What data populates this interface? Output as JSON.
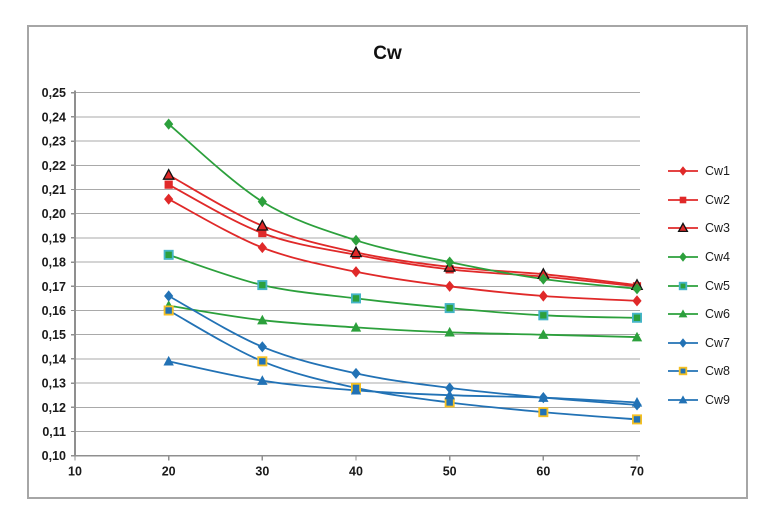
{
  "chart_data": {
    "type": "line",
    "title": "Cw",
    "xlabel": "",
    "ylabel": "",
    "xlim": [
      10,
      70
    ],
    "ylim": [
      0.1,
      0.25
    ],
    "grid": true,
    "legend_position": "right",
    "x_ticks": [
      10,
      20,
      30,
      40,
      50,
      60,
      70
    ],
    "x_tick_labels": [
      "10",
      "20",
      "30",
      "40",
      "50",
      "60",
      "70"
    ],
    "y_ticks": [
      0.1,
      0.11,
      0.12,
      0.13,
      0.14,
      0.15,
      0.16,
      0.17,
      0.18,
      0.19,
      0.2,
      0.21,
      0.22,
      0.23,
      0.24,
      0.25
    ],
    "y_tick_labels": [
      "0,10",
      "0,11",
      "0,12",
      "0,13",
      "0,14",
      "0,15",
      "0,16",
      "0,17",
      "0,18",
      "0,19",
      "0,20",
      "0,21",
      "0,22",
      "0,23",
      "0,24",
      "0,25"
    ],
    "x": [
      20,
      30,
      40,
      50,
      60,
      70
    ],
    "series": [
      {
        "name": "Cw1",
        "marker": "diamond",
        "color": "#e02929",
        "outline": "#e02929",
        "values": [
          0.206,
          0.186,
          0.176,
          0.17,
          0.166,
          0.164
        ]
      },
      {
        "name": "Cw2",
        "marker": "square",
        "color": "#e02929",
        "outline": "#e02929",
        "values": [
          0.212,
          0.192,
          0.183,
          0.177,
          0.174,
          0.17
        ]
      },
      {
        "name": "Cw3",
        "marker": "triangle",
        "color": "#e02929",
        "outline": "#111111",
        "values": [
          0.216,
          0.195,
          0.184,
          0.178,
          0.175,
          0.1705
        ]
      },
      {
        "name": "Cw4",
        "marker": "diamond",
        "color": "#2ca03c",
        "outline": "#2ca03c",
        "values": [
          0.237,
          0.205,
          0.189,
          0.18,
          0.173,
          0.169
        ]
      },
      {
        "name": "Cw5",
        "marker": "square",
        "color": "#2ca03c",
        "outline": "#45b5c8",
        "values": [
          0.183,
          0.1705,
          0.165,
          0.161,
          0.158,
          0.157
        ]
      },
      {
        "name": "Cw6",
        "marker": "triangle",
        "color": "#2ca03c",
        "outline": "#2ca03c",
        "values": [
          0.162,
          0.156,
          0.153,
          0.151,
          0.15,
          0.149
        ]
      },
      {
        "name": "Cw7",
        "marker": "diamond",
        "color": "#2272b5",
        "outline": "#2272b5",
        "values": [
          0.166,
          0.145,
          0.134,
          0.128,
          0.124,
          0.121
        ]
      },
      {
        "name": "Cw8",
        "marker": "square",
        "color": "#2272b5",
        "outline": "#f5c023",
        "values": [
          0.16,
          0.139,
          0.128,
          0.122,
          0.118,
          0.115
        ]
      },
      {
        "name": "Cw9",
        "marker": "triangle",
        "color": "#2272b5",
        "outline": "#2272b5",
        "values": [
          0.139,
          0.131,
          0.127,
          0.125,
          0.124,
          0.122
        ]
      }
    ]
  },
  "styles": {
    "background": "#ffffff",
    "frame_border": "#a6a6a6",
    "gridline": "#a9a9a9",
    "axis": "#8f8f8f",
    "tick_label_color": "#1a1a1a",
    "title_color": "#111111",
    "series_red": "#e02929",
    "series_green": "#2ca03c",
    "series_blue": "#2272b5",
    "outline_teal": "#45b5c8",
    "outline_gold": "#f5c023",
    "outline_black": "#111111"
  }
}
